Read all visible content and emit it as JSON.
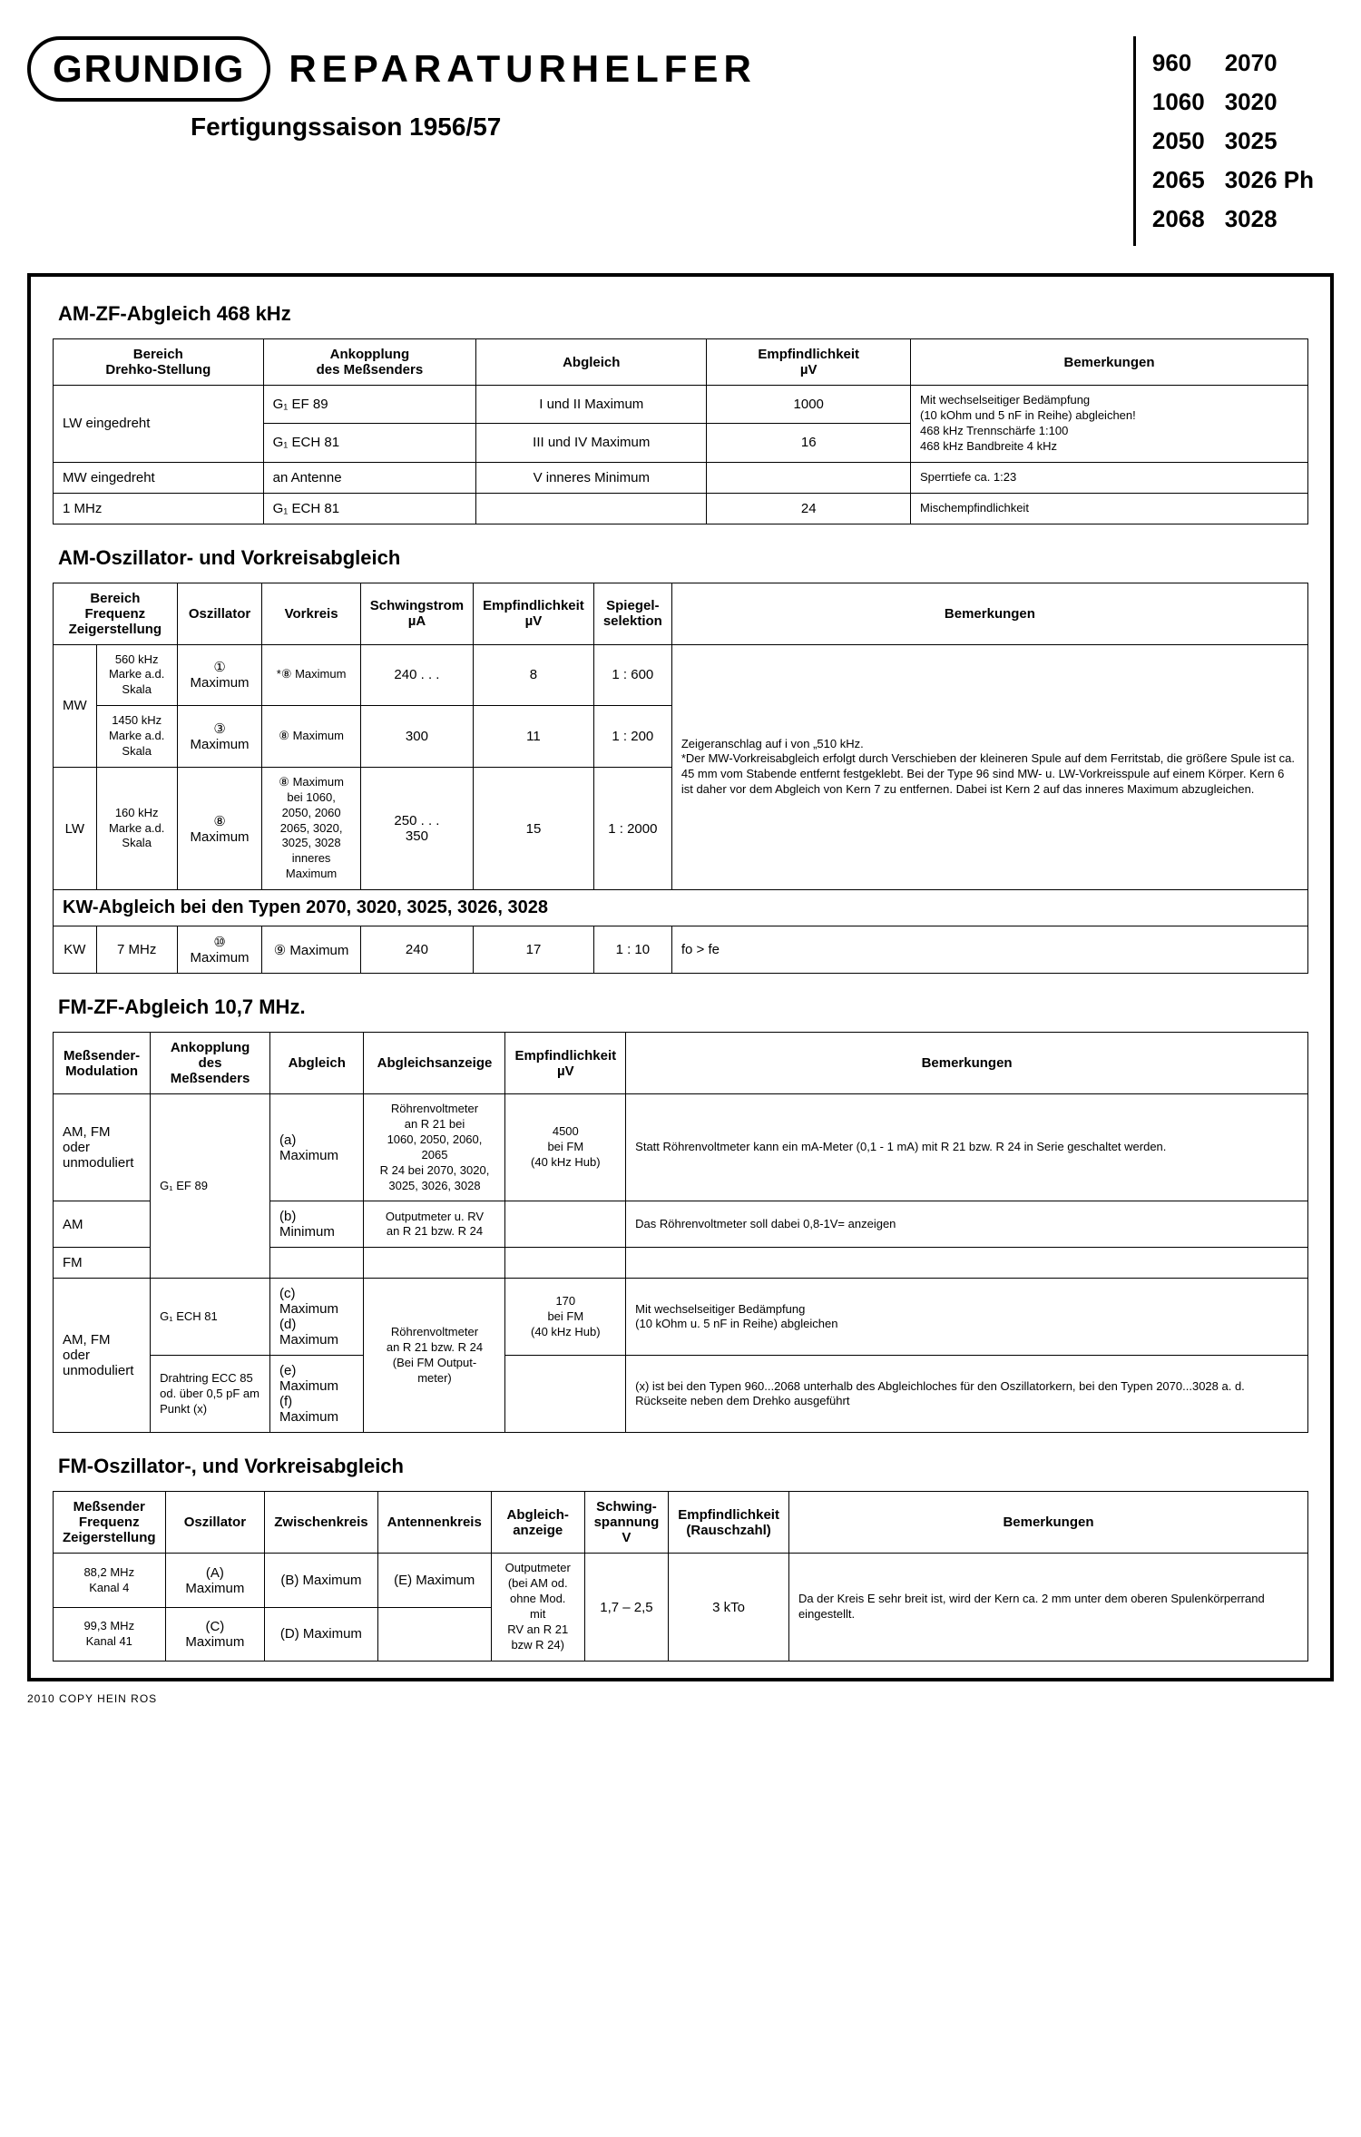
{
  "header": {
    "logo": "GRUNDIG",
    "title": "REPARATURHELFER",
    "subtitle": "Fertigungssaison 1956/57"
  },
  "models": {
    "col1": [
      "960",
      "1060",
      "2050",
      "2065",
      "2068"
    ],
    "col2": [
      "2070",
      "3020",
      "3025",
      "3026 Ph",
      "3028"
    ]
  },
  "section1": {
    "title": "AM-ZF-Abgleich 468 kHz",
    "headers": [
      "Bereich\nDrehko-Stellung",
      "Ankopplung\ndes Meßsenders",
      "Abgleich",
      "Empfindlichkeit\nµV",
      "Bemerkungen"
    ],
    "rows": [
      {
        "c0": "LW eingedreht",
        "c1": "G₁ EF 89",
        "c2": "I und II Maximum",
        "c3": "1000",
        "c4": "Mit wechselseitiger Bedämpfung\n(10 kOhm und 5 nF in Reihe) abgleichen!\n468 kHz Trennschärfe 1:100\n468 kHz Bandbreite 4 kHz",
        "rs0": 2,
        "rs4": 2
      },
      {
        "c1": "G₁ ECH 81",
        "c2": "III und IV Maximum",
        "c3": "16"
      },
      {
        "c0": "MW eingedreht",
        "c1": "an Antenne",
        "c2": "V inneres Minimum",
        "c3": "",
        "c4": "Sperrtiefe ca. 1:23"
      },
      {
        "c0": "1 MHz",
        "c1": "G₁ ECH 81",
        "c2": "",
        "c3": "24",
        "c4": "Mischempfindlichkeit"
      }
    ]
  },
  "section2": {
    "title": "AM-Oszillator- und Vorkreisabgleich",
    "headers": [
      "Bereich\nFrequenz\nZeigerstellung",
      "Oszillator",
      "Vorkreis",
      "Schwingstrom\nµA",
      "Empfindlichkeit\nµV",
      "Spiegel-\nselektion",
      "Bemerkungen"
    ],
    "rows": [
      {
        "b": "MW",
        "c0": "560 kHz\nMarke a.d. Skala",
        "c1": "① Maximum",
        "c2": "*⑧ Maximum",
        "c3": "240 . . .",
        "c4": "8",
        "c5": "1 : 600",
        "c6": "Zeigeranschlag auf i von „510 kHz.\n*Der MW-Vorkreisabgleich erfolgt durch Verschieben der kleineren Spule auf dem Ferritstab, die größere Spule ist ca. 45 mm vom Stabende entfernt festgeklebt. Bei der Type 96 sind MW- u. LW-Vorkreisspule auf einem Körper. Kern 6 ist daher vor dem Abgleich von Kern 7 zu entfernen. Dabei ist Kern 2 auf das inneres Maximum abzugleichen.",
        "rsb": 2,
        "rs6": 3
      },
      {
        "c0": "1450 kHz\nMarke a.d. Skala",
        "c1": "③ Maximum",
        "c2": "⑧ Maximum",
        "c3": "300",
        "c4": "11",
        "c5": "1 : 200"
      },
      {
        "b": "LW",
        "c0": "160 kHz\nMarke a.d. Skala",
        "c1": "⑧ Maximum",
        "c2": "⑧ Maximum\nbei 1060, 2050, 2060\n2065, 3020, 3025, 3028\ninneres Maximum",
        "c3": "250 . . .\n350",
        "c4": "15",
        "c5": "1 : 2000"
      }
    ],
    "kw_band": "KW-Abgleich bei den Typen 2070, 3020, 3025, 3026, 3028",
    "kw_row": {
      "b": "KW",
      "c0": "7 MHz",
      "c1": "⑩ Maximum",
      "c2": "⑨ Maximum",
      "c3": "240",
      "c4": "17",
      "c5": "1 : 10",
      "c6": "fo > fe"
    }
  },
  "section3": {
    "title": "FM-ZF-Abgleich 10,7 MHz.",
    "headers": [
      "Meßsender-\nModulation",
      "Ankopplung\ndes Meßsenders",
      "Abgleich",
      "Abgleichsanzeige",
      "Empfindlichkeit\nµV",
      "Bemerkungen"
    ],
    "rows": [
      {
        "c0": "AM, FM oder\nunmoduliert",
        "c1": "G₁ EF 89",
        "c2": "(a) Maximum",
        "c3": "Röhrenvoltmeter\nan R 21 bei\n1060, 2050, 2060, 2065\nR 24 bei 2070, 3020,\n3025, 3026, 3028",
        "c4": "4500\nbei FM\n(40 kHz Hub)",
        "c5": "Statt Röhrenvoltmeter kann ein mA-Meter (0,1 - 1 mA) mit R 21 bzw. R 24 in Serie geschaltet werden.",
        "rs1": 3
      },
      {
        "c0": "AM",
        "c2": "(b) Minimum",
        "c3": "Outputmeter u. RV\nan R 21 bzw. R 24",
        "c4": "",
        "c5": "Das Röhrenvoltmeter soll dabei 0,8-1V= anzeigen"
      },
      {
        "c0": "FM",
        "c2": "",
        "c3": "",
        "c4": "",
        "c5": ""
      },
      {
        "c0": "AM, FM oder\nunmoduliert",
        "c1": "G₁ ECH 81",
        "c2": "(c) Maximum\n(d) Maximum",
        "c3": "Röhrenvoltmeter\nan R 21 bzw. R 24\n(Bei FM Output-\nmeter)",
        "c4": "170\nbei FM\n(40 kHz Hub)",
        "c5": "Mit wechselseitiger Bedämpfung\n(10 kOhm u. 5 nF in Reihe) abgleichen",
        "rs0": 2,
        "rs3": 2
      },
      {
        "c1": "Drahtring ECC 85\nod. über 0,5 pF am\nPunkt (x)",
        "c2": "(e) Maximum\n(f) Maximum",
        "c4": "",
        "c5": "(x) ist bei den Typen 960...2068 unterhalb des Abgleichloches für den Oszillatorkern, bei den Typen 2070...3028 a. d. Rückseite neben dem Drehko ausgeführt"
      }
    ]
  },
  "section4": {
    "title": "FM-Oszillator-, und Vorkreisabgleich",
    "headers": [
      "Meßsender\nFrequenz\nZeigerstellung",
      "Oszillator",
      "Zwischenkreis",
      "Antennenkreis",
      "Abgleich-\nanzeige",
      "Schwing-\nspannung\nV",
      "Empfindlichkeit\n(Rauschzahl)",
      "Bemerkungen"
    ],
    "rows": [
      {
        "c0": "88,2 MHz\nKanal 4",
        "c1": "(A) Maximum",
        "c2": "(B) Maximum",
        "c3": "(E) Maximum",
        "c4": "Outputmeter\n(bei AM od.\nohne Mod. mit\nRV an R 21\nbzw R 24)",
        "c5": "1,7 – 2,5",
        "c6": "3 kTo",
        "c7": "Da der Kreis E sehr breit ist, wird der Kern ca. 2 mm unter dem oberen Spulenkörperrand eingestellt.",
        "rs4": 2,
        "rs5": 2,
        "rs6": 2,
        "rs7": 2
      },
      {
        "c0": "99,3 MHz\nKanal 41",
        "c1": "(C) Maximum",
        "c2": "(D) Maximum",
        "c3": ""
      }
    ]
  },
  "footer": "2010 COPY HEIN ROS"
}
